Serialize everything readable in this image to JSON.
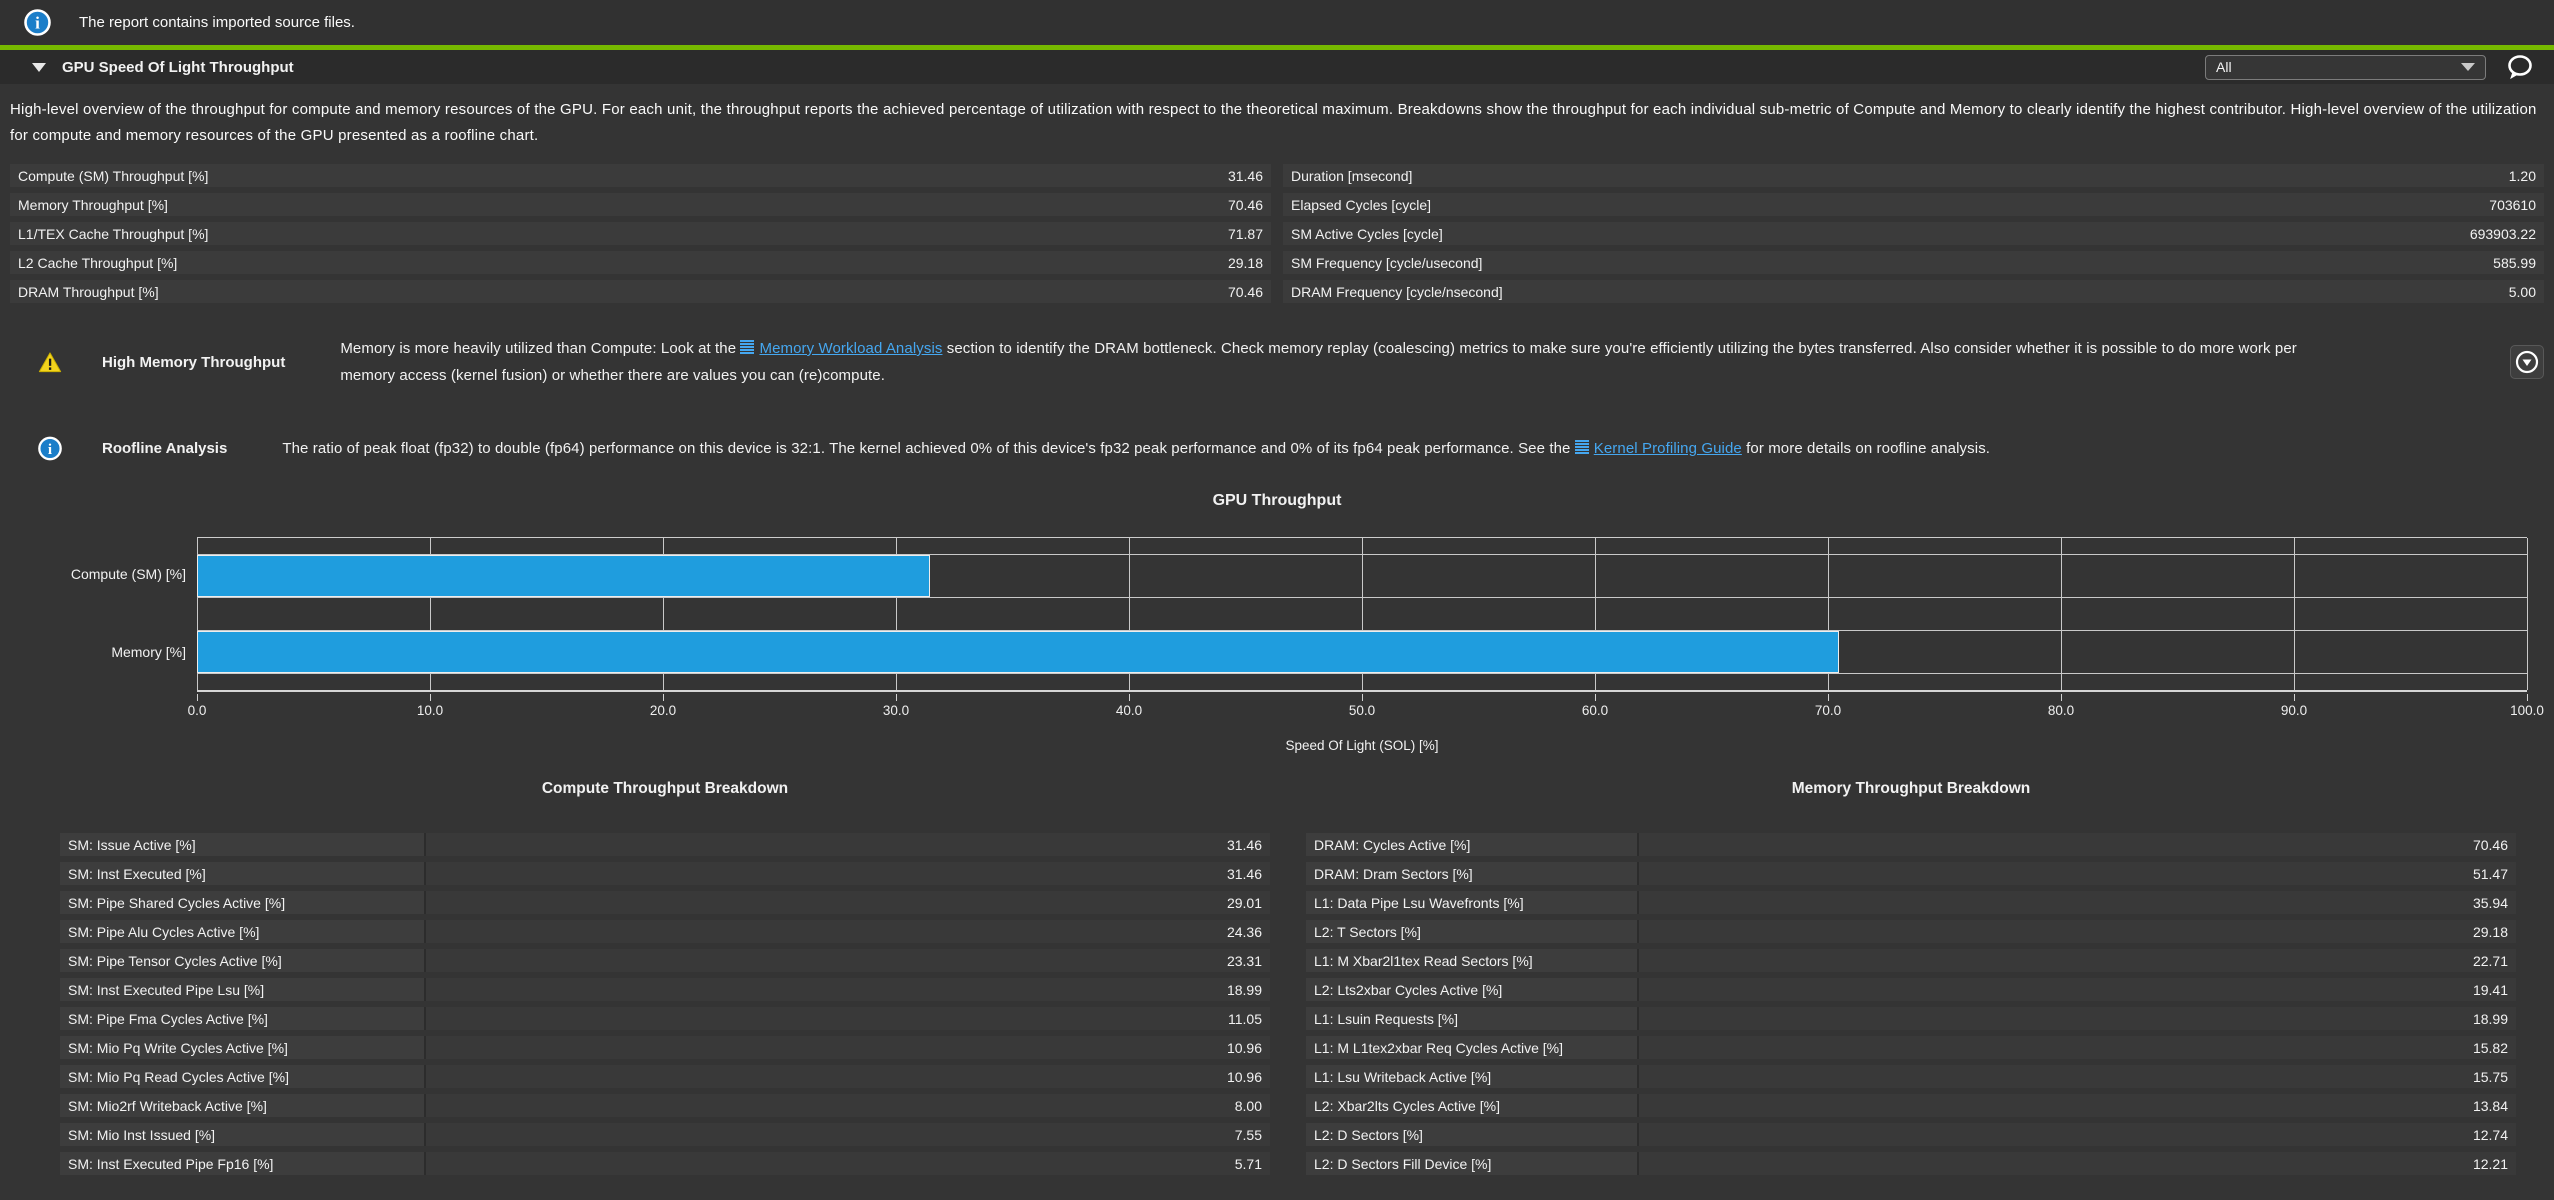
{
  "notice": {
    "text": "The report contains imported source files."
  },
  "section": {
    "title": "GPU Speed Of Light Throughput",
    "filter_value": "All",
    "description": "High-level overview of the throughput for compute and memory resources of the GPU. For each unit, the throughput reports the achieved percentage of utilization with respect to the theoretical maximum. Breakdowns show the throughput for each individual sub-metric of Compute and Memory to clearly identify the highest contributor. High-level overview of the utilization for compute and memory resources of the GPU presented as a roofline chart."
  },
  "summary": {
    "left": [
      {
        "label": "Compute (SM) Throughput [%]",
        "value": "31.46"
      },
      {
        "label": "Memory Throughput [%]",
        "value": "70.46"
      },
      {
        "label": "L1/TEX Cache Throughput [%]",
        "value": "71.87"
      },
      {
        "label": "L2 Cache Throughput [%]",
        "value": "29.18"
      },
      {
        "label": "DRAM Throughput [%]",
        "value": "70.46"
      }
    ],
    "right": [
      {
        "label": "Duration [msecond]",
        "value": "1.20"
      },
      {
        "label": "Elapsed Cycles [cycle]",
        "value": "703610"
      },
      {
        "label": "SM Active Cycles [cycle]",
        "value": "693903.22"
      },
      {
        "label": "SM Frequency [cycle/usecond]",
        "value": "585.99"
      },
      {
        "label": "DRAM Frequency [cycle/nsecond]",
        "value": "5.00"
      }
    ]
  },
  "rules": [
    {
      "type": "warning",
      "title": "High Memory Throughput",
      "message_before": "Memory is more heavily utilized than Compute: Look at the ",
      "link": "Memory Workload Analysis",
      "message_after": " section to identify the DRAM bottleneck. Check memory replay (coalescing) metrics to make sure you're efficiently utilizing the bytes transferred. Also consider whether it is possible to do more work per memory access (kernel fusion) or whether there are values you can (re)compute."
    },
    {
      "type": "info",
      "title": "Roofline Analysis",
      "message_before": "The ratio of peak float (fp32) to double (fp64) performance on this device is 32:1. The kernel achieved 0% of this device's fp32 peak performance and 0% of its fp64 peak performance. See the ",
      "link": "Kernel Profiling Guide",
      "message_after": " for more details on roofline analysis."
    }
  ],
  "chart_data": {
    "type": "bar",
    "orientation": "horizontal",
    "title": "GPU Throughput",
    "categories": [
      "Compute (SM) [%]",
      "Memory [%]"
    ],
    "values": [
      31.46,
      70.46
    ],
    "xlabel": "Speed Of Light (SOL) [%]",
    "xlim": [
      0,
      100
    ],
    "xticks": [
      0,
      10,
      20,
      30,
      40,
      50,
      60,
      70,
      80,
      90,
      100
    ],
    "tick_labels": [
      "0.0",
      "10.0",
      "20.0",
      "30.0",
      "40.0",
      "50.0",
      "60.0",
      "70.0",
      "80.0",
      "90.0",
      "100.0"
    ],
    "grid": true,
    "legend": "none",
    "bar_color": "#1f9dde"
  },
  "breakdowns": {
    "compute": {
      "title": "Compute Throughput Breakdown",
      "rows": [
        {
          "label": "SM: Issue Active [%]",
          "value": "31.46"
        },
        {
          "label": "SM: Inst Executed [%]",
          "value": "31.46"
        },
        {
          "label": "SM: Pipe Shared Cycles Active [%]",
          "value": "29.01"
        },
        {
          "label": "SM: Pipe Alu Cycles Active [%]",
          "value": "24.36"
        },
        {
          "label": "SM: Pipe Tensor Cycles Active [%]",
          "value": "23.31"
        },
        {
          "label": "SM: Inst Executed Pipe Lsu [%]",
          "value": "18.99"
        },
        {
          "label": "SM: Pipe Fma Cycles Active [%]",
          "value": "11.05"
        },
        {
          "label": "SM: Mio Pq Write Cycles Active [%]",
          "value": "10.96"
        },
        {
          "label": "SM: Mio Pq Read Cycles Active [%]",
          "value": "10.96"
        },
        {
          "label": "SM: Mio2rf Writeback Active [%]",
          "value": "8.00"
        },
        {
          "label": "SM: Mio Inst Issued [%]",
          "value": "7.55"
        },
        {
          "label": "SM: Inst Executed Pipe Fp16 [%]",
          "value": "5.71"
        }
      ]
    },
    "memory": {
      "title": "Memory Throughput Breakdown",
      "rows": [
        {
          "label": "DRAM: Cycles Active [%]",
          "value": "70.46"
        },
        {
          "label": "DRAM: Dram Sectors [%]",
          "value": "51.47"
        },
        {
          "label": "L1: Data Pipe Lsu Wavefronts [%]",
          "value": "35.94"
        },
        {
          "label": "L2: T Sectors [%]",
          "value": "29.18"
        },
        {
          "label": "L1: M Xbar2l1tex Read Sectors [%]",
          "value": "22.71"
        },
        {
          "label": "L2: Lts2xbar Cycles Active [%]",
          "value": "19.41"
        },
        {
          "label": "L1: Lsuin Requests [%]",
          "value": "18.99"
        },
        {
          "label": "L1: M L1tex2xbar Req Cycles Active [%]",
          "value": "15.82"
        },
        {
          "label": "L1: Lsu Writeback Active [%]",
          "value": "15.75"
        },
        {
          "label": "L2: Xbar2lts Cycles Active [%]",
          "value": "13.84"
        },
        {
          "label": "L2: D Sectors [%]",
          "value": "12.74"
        },
        {
          "label": "L2: D Sectors Fill Device [%]",
          "value": "12.21"
        }
      ]
    }
  },
  "colors": {
    "accent_green": "#76b900",
    "bar_blue": "#1f9dde",
    "link_blue": "#45a7f0",
    "warning_yellow": "#f3d41d",
    "info_blue": "#1b7ec9"
  }
}
